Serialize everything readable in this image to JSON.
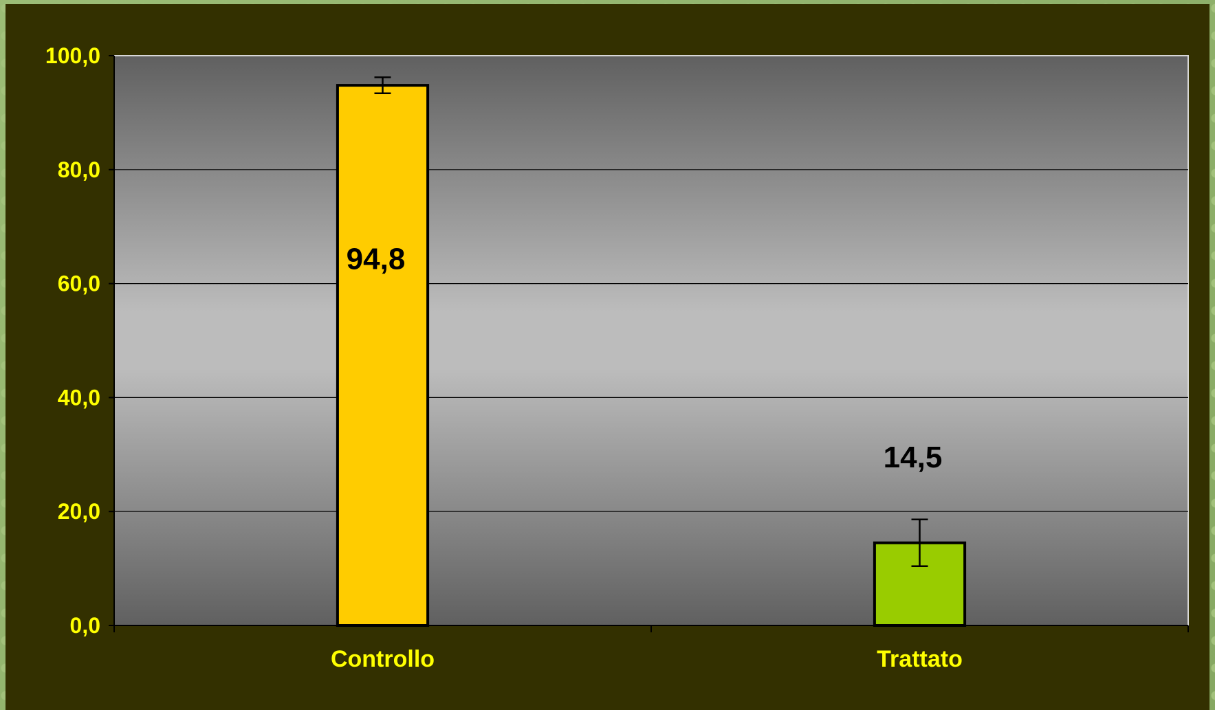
{
  "chart_data": {
    "type": "bar",
    "categories": [
      "Controllo",
      "Trattato"
    ],
    "values": [
      94.8,
      14.5
    ],
    "value_labels": [
      "94,8",
      "14,5"
    ],
    "error": [
      1.4,
      4.1
    ],
    "colors": [
      "#ffcc00",
      "#99cc00"
    ],
    "ylim": [
      0,
      100
    ],
    "yticks": [
      0,
      20,
      40,
      60,
      80,
      100
    ],
    "ytick_labels": [
      "0,0",
      "20,0",
      "40,0",
      "60,0",
      "80,0",
      "100,0"
    ],
    "title": "",
    "xlabel": "",
    "ylabel": "",
    "grid": true,
    "legend": "none"
  }
}
